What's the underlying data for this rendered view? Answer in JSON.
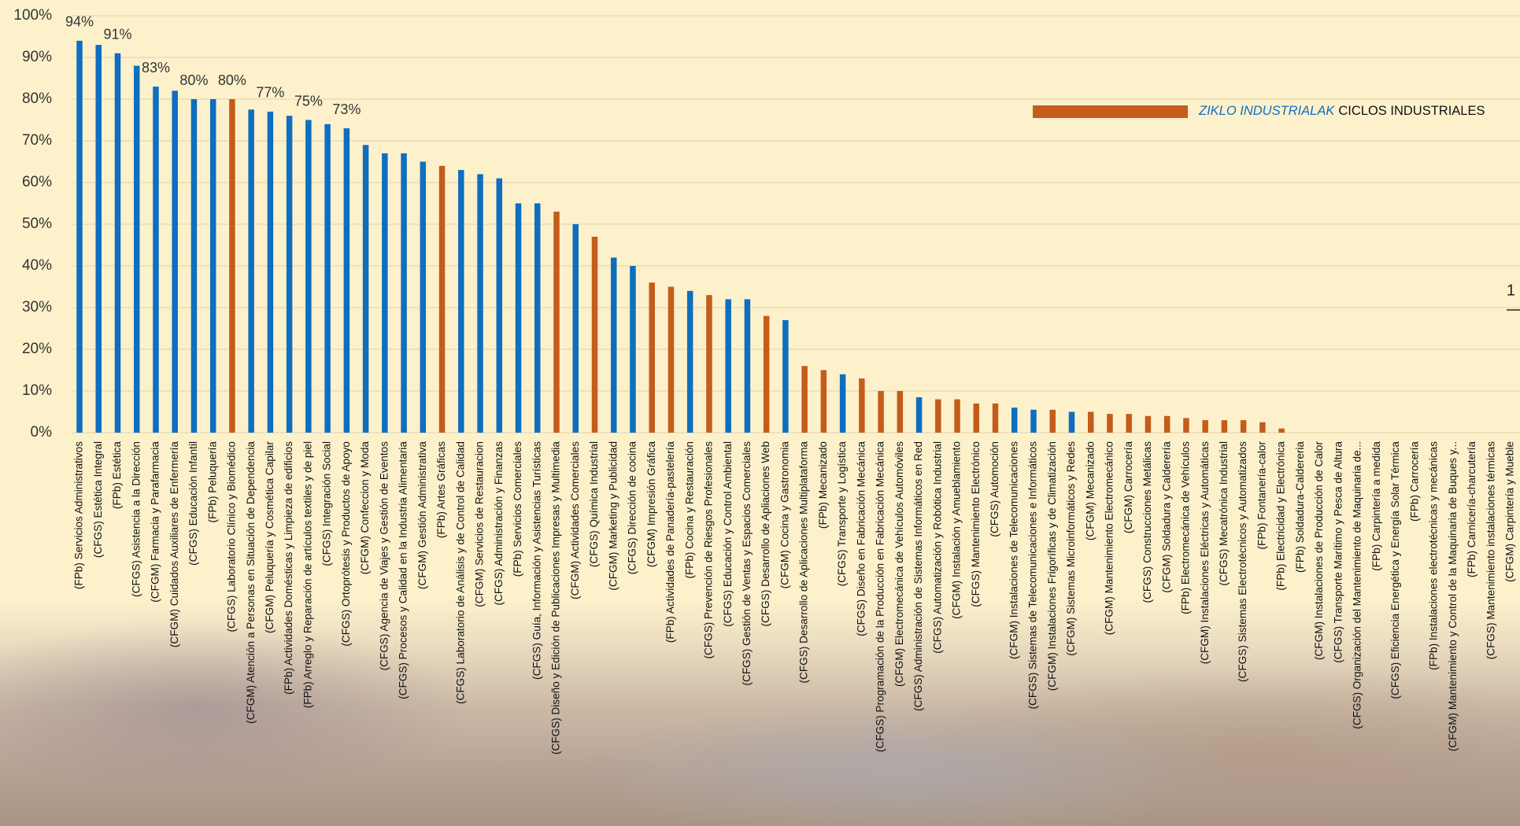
{
  "chart_data": {
    "type": "bar",
    "categories": [
      "(FPb) Servicios Administrativos",
      "(CFGS) Estética Integral",
      "(FPb) Estética",
      "(CFGS) Asistencia a la Dirección",
      "(CFGM) Farmacia y Parafarmacia",
      "(CFGM) Cuidados Auxiliares de Enfermería",
      "(CFGS) Educación Infantil",
      "(FPb) Peluquería",
      "(CFGS) Laboratorio Clínico y Biomédico",
      "(CFGM) Atención a Personas en Situación de Dependencia",
      "(CFGM) Peluquería y Cosmética Capilar",
      "(FPb) Actividades Domésticas y Limpieza de edificios",
      "(FPb) Arreglo y Reparación de artículos textiles y de piel",
      "(CFGS) Integración Social",
      "(CFGS) Ortoprótesis y Productos de Apoyo",
      "(CFGM) Confeccion y Moda",
      "(CFGS) Agencia de Viajes y Gestión de Eventos",
      "(CFGS) Procesos y Calidad en la Industria Alimentaria",
      "(CFGM) Gestión Administrativa",
      "(FPb) Artes Gráficas",
      "(CFGS) Laboratorio de Análisis y de Control de Calidad",
      "(CFGM) Servicios de Restauracion",
      "(CFGS) Administración y Finanzas",
      "(FPb) Servicios Comerciales",
      "(CFGS) Guía, Información y Asistencias Turísticas",
      "(CFGS) Diseño y Edición de Publicaciones Impresas y Multimedia",
      "(CFGM) Actividades Comerciales",
      "(CFGS) Química Industrial",
      "(CFGM) Marketing y Publicidad",
      "(CFGS) Dirección de cocina",
      "(CFGM) Impresión Gráfica",
      "(FPb) Actividades de Panadería-pastelería",
      "(FPb) Cocina y Restauración",
      "(CFGS) Prevención de Riesgos Profesionales",
      "(CFGS) Educación y Control Ambiental",
      "(CFGS) Gestión de Ventas y Espacios Comerciales",
      "(CFGS) Desarrollo de Apliaciones Web",
      "(CFGM) Cocina y Gastronomia",
      "(CFGS) Desarrollo de Aplicaciones Multiplataforma",
      "(FPb) Mecanizado",
      "(CFGS) Transporte y Logística",
      "(CFGS) Diseño en Fabricación Mecánica",
      "(CFGS) Programación de la Producción en Fabricación Mecánica",
      "(CFGM) Electromecánica de Vehículos Automóviles",
      "(CFGS) Administración de Sistemas Informáticos en Red",
      "(CFGS) Automatización y Robótica Industrial",
      "(CFGM) Instalación y Amueblamiento",
      "(CFGS) Mantenimiento Electrónico",
      "(CFGS) Automoción",
      "(CFGM) Instalaciones de Telecomunicaciones",
      "(CFGS) Sistemas de Telecomunicaciones e Informáticos",
      "(CFGM) Instalaciones Frigoríficas y de Climatización",
      "(CFGM) Sistemas Microinformáticos y Redes",
      "(CFGM) Mecanizado",
      "(CFGM) Mantenimiento Electromecánico",
      "(CFGM) Carrocería",
      "(CFGS) Construcciones Metálicas",
      "(CFGM) Soldadura y Calderería",
      "(FPb) Electromecánica de Vehículos",
      "(CFGM) Instalaciones Eléctricas y Automáticas",
      "(CFGS) Mecatrónica Industrial",
      "(CFGS) Sistemas Electrotécnicos y Automatizados",
      "(FPb) Fontanería-calor",
      "(FPb) Electricidad y Electrónica",
      "(FPb) Soldadura-Caldereria",
      "(CFGM) Instalaciones de Producción de Calor",
      "(CFGS) Transporte Marítimo y Pesca de Altura",
      "(CFGS) Organización del Mantenimiento de Maquinaria de...",
      "(FPb) Carpintería a medida",
      "(CFGS) Eficiencia Energética y Energía Solar Térmica",
      "(FPb) Carrocería",
      "(FPb) Instalaciones electrotécnicas y mecánicas",
      "(CFGM) Mantenimiento y Control de la Maquinaria de Buques y...",
      "(FPb) Carnicería-charcutería",
      "(CFGS) Mantenimiento instalaciones térmicas",
      "(CFGM) Carpintería y Mueble"
    ],
    "values": [
      94,
      93,
      91,
      88,
      83,
      82,
      80,
      80,
      80,
      77.5,
      77,
      76,
      75,
      74,
      73,
      69,
      67,
      67,
      65,
      64,
      63,
      62,
      61,
      55,
      55,
      53,
      50,
      47,
      42,
      40,
      36,
      35,
      34,
      33,
      32,
      32,
      28,
      27,
      16,
      15,
      14,
      13,
      10,
      10,
      8.5,
      8,
      8,
      7,
      7,
      6,
      5.5,
      5.5,
      5,
      5,
      4.5,
      4.5,
      4,
      4,
      3.5,
      3,
      3,
      3,
      2.5,
      1,
      0,
      0,
      0,
      0,
      0,
      0,
      0,
      0,
      0,
      0,
      0,
      0
    ],
    "value_labels": [
      "94%",
      null,
      "91%",
      null,
      "83%",
      null,
      "80%",
      null,
      "80%",
      null,
      "77%",
      null,
      "75%",
      null,
      "73%",
      null,
      null,
      null,
      null,
      null,
      null,
      null,
      null,
      null,
      null,
      null,
      null,
      null,
      null,
      null,
      null,
      null,
      null,
      null,
      null,
      null,
      null,
      null,
      null,
      null,
      null,
      null,
      null,
      null,
      null,
      null,
      null,
      null,
      null,
      null,
      null,
      null,
      null,
      null,
      null,
      null,
      null,
      null,
      null,
      null,
      null,
      null,
      null,
      null,
      null,
      null,
      null,
      null,
      null,
      null,
      null,
      null,
      null,
      null,
      null,
      null
    ],
    "colors": [
      "#0e6ebf",
      "#0e6ebf",
      "#0e6ebf",
      "#0e6ebf",
      "#0e6ebf",
      "#0e6ebf",
      "#0e6ebf",
      "#0e6ebf",
      "#c45c1a",
      "#0e6ebf",
      "#0e6ebf",
      "#0e6ebf",
      "#0e6ebf",
      "#0e6ebf",
      "#0e6ebf",
      "#0e6ebf",
      "#0e6ebf",
      "#0e6ebf",
      "#0e6ebf",
      "#c45c1a",
      "#0e6ebf",
      "#0e6ebf",
      "#0e6ebf",
      "#0e6ebf",
      "#0e6ebf",
      "#c45c1a",
      "#0e6ebf",
      "#c45c1a",
      "#0e6ebf",
      "#0e6ebf",
      "#c45c1a",
      "#c45c1a",
      "#0e6ebf",
      "#c45c1a",
      "#0e6ebf",
      "#0e6ebf",
      "#c45c1a",
      "#0e6ebf",
      "#c45c1a",
      "#c45c1a",
      "#0e6ebf",
      "#c45c1a",
      "#c45c1a",
      "#c45c1a",
      "#0e6ebf",
      "#c45c1a",
      "#c45c1a",
      "#c45c1a",
      "#c45c1a",
      "#0e6ebf",
      "#0e6ebf",
      "#c45c1a",
      "#0e6ebf",
      "#c45c1a",
      "#c45c1a",
      "#c45c1a",
      "#c45c1a",
      "#c45c1a",
      "#c45c1a",
      "#c45c1a",
      "#c45c1a",
      "#c45c1a",
      "#c45c1a",
      "#c45c1a",
      "#c45c1a",
      "#c45c1a",
      "#c45c1a",
      "#c45c1a",
      "#c45c1a",
      "#c45c1a",
      "#c45c1a",
      "#c45c1a",
      "#c45c1a",
      "#c45c1a",
      "#c45c1a",
      "#c45c1a"
    ],
    "ylim": [
      0,
      100
    ],
    "yticks": [
      {
        "value": 0,
        "label": "0%"
      },
      {
        "value": 10,
        "label": "10%"
      },
      {
        "value": 20,
        "label": "20%"
      },
      {
        "value": 30,
        "label": "30%"
      },
      {
        "value": 40,
        "label": "40%"
      },
      {
        "value": 50,
        "label": "50%"
      },
      {
        "value": 60,
        "label": "60%"
      },
      {
        "value": 70,
        "label": "70%"
      },
      {
        "value": 80,
        "label": "80%"
      },
      {
        "value": 90,
        "label": "90%"
      },
      {
        "value": 100,
        "label": "100%"
      }
    ],
    "grid": true,
    "legend": {
      "position": "upper right",
      "color": "#c45c1a",
      "label_basque": "ZIKLO INDUSTRIALAK",
      "label_spanish": "CICLOS INDUSTRIALES",
      "label_basque_color": "#0e6ebf"
    },
    "edge_text": "1"
  }
}
